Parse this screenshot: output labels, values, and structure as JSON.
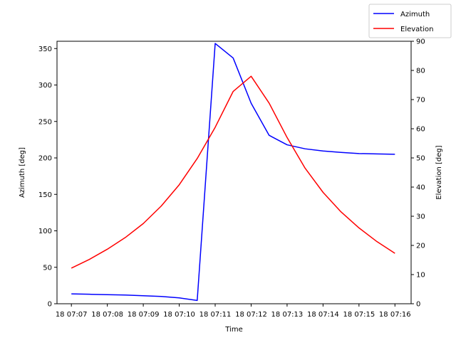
{
  "chart_data": {
    "type": "line",
    "title": "",
    "xlabel": "Time",
    "ylabel_left": "Azimuth [deg]",
    "ylabel_right": "Elevation [deg]",
    "x": [
      "07:07",
      "07:07:30",
      "07:08",
      "07:08:30",
      "07:09",
      "07:09:30",
      "07:10",
      "07:10:30",
      "07:11",
      "07:11:30",
      "07:12",
      "07:12:30",
      "07:13",
      "07:13:30",
      "07:14",
      "07:14:30",
      "07:15",
      "07:15:30",
      "07:16"
    ],
    "x_tick_labels": [
      "18 07:07",
      "18 07:08",
      "18 07:09",
      "18 07:10",
      "18 07:11",
      "18 07:12",
      "18 07:13",
      "18 07:14",
      "18 07:15",
      "18 07:16"
    ],
    "x_range_minutes": [
      -0.4,
      9.45
    ],
    "series": [
      {
        "name": "Azimuth",
        "axis": "left",
        "color": "#0000ff",
        "x": [
          0,
          0.5,
          1,
          1.5,
          2,
          2.5,
          3,
          3.5,
          4,
          4.5,
          5,
          5.5,
          6,
          6.5,
          7,
          7.5,
          8,
          8.5,
          9
        ],
        "values": [
          13.5,
          13.0,
          12.5,
          12.0,
          11.0,
          10.0,
          8.0,
          4.5,
          357.0,
          337.0,
          275.0,
          231.0,
          218.0,
          212.5,
          209.5,
          207.5,
          206.0,
          205.5,
          205.0
        ]
      },
      {
        "name": "Elevation",
        "axis": "right",
        "color": "#ff0000",
        "x": [
          0,
          0.5,
          1,
          1.5,
          2,
          2.5,
          3,
          3.5,
          4,
          4.5,
          5,
          5.5,
          6,
          6.5,
          7,
          7.5,
          8,
          8.5,
          9
        ],
        "values": [
          12.2,
          15.2,
          18.7,
          22.7,
          27.5,
          33.5,
          40.8,
          49.8,
          60.5,
          72.8,
          78.0,
          68.8,
          57.0,
          46.5,
          38.2,
          31.5,
          26.0,
          21.3,
          17.3
        ]
      }
    ],
    "ylim_left": [
      0,
      360
    ],
    "ylim_right": [
      0,
      90
    ],
    "yticks_left": [
      0,
      50,
      100,
      150,
      200,
      250,
      300,
      350
    ],
    "yticks_right": [
      0,
      10,
      20,
      30,
      40,
      50,
      60,
      70,
      80,
      90
    ],
    "grid": false,
    "legend_position": "top-right"
  }
}
